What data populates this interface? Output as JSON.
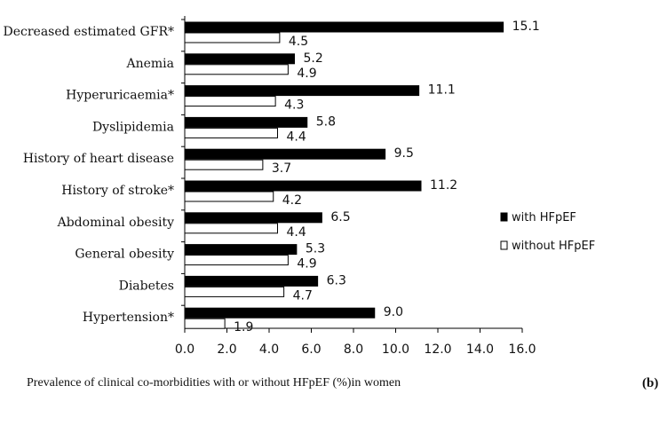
{
  "chart_data": {
    "type": "bar",
    "orientation": "horizontal",
    "categories": [
      "Decreased estimated GFR*",
      "Anemia",
      "Hyperuricaemia*",
      "Dyslipidemia",
      "History of heart disease",
      "History of stroke*",
      "Abdominal obesity",
      "General obesity",
      "Diabetes",
      "Hypertension*"
    ],
    "series": [
      {
        "name": "with HFpEF",
        "color": "#000000",
        "values": [
          15.1,
          5.2,
          11.1,
          5.8,
          9.5,
          11.2,
          6.5,
          5.3,
          6.3,
          9.0
        ]
      },
      {
        "name": "without HFpEF",
        "color": "#ffffff",
        "values": [
          4.5,
          4.9,
          4.3,
          4.4,
          3.7,
          4.2,
          4.4,
          4.9,
          4.7,
          1.9
        ]
      }
    ],
    "x_ticks": [
      "0.0",
      "2.0",
      "4.0",
      "6.0",
      "8.0",
      "10.0",
      "12.0",
      "14.0",
      "16.0"
    ],
    "xlim": [
      0,
      16
    ],
    "xlabel": "Prevalence of clinical co-morbidities with or without  HFpEF (%)in women",
    "panel_label": "(b)",
    "legend_position": "right",
    "grid": false
  }
}
